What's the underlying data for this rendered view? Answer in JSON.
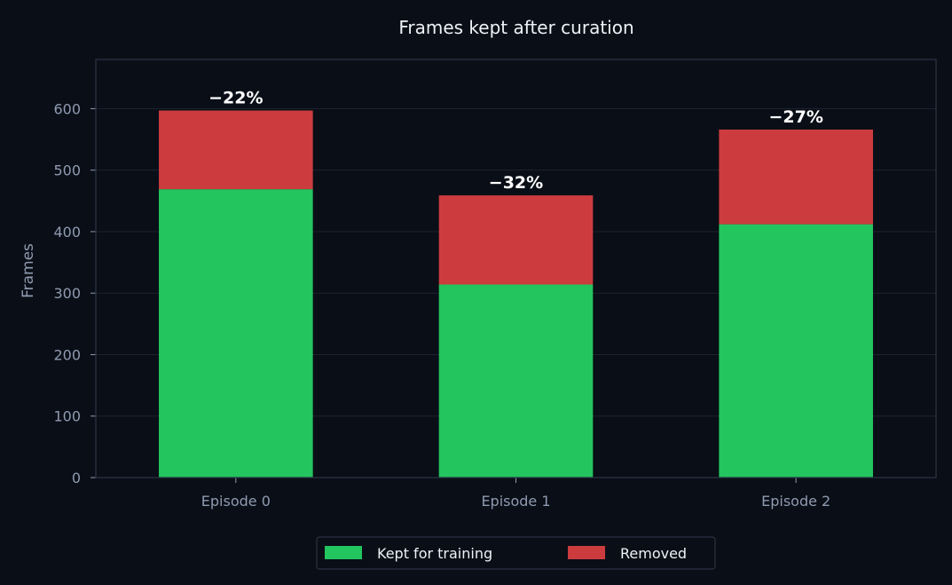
{
  "colors": {
    "background": "#0a0e17",
    "plot_border": "#2a3342",
    "grid": "#1c2331",
    "tick_text": "#8f9bb0",
    "title_text": "#eef1f6",
    "kept": "#22c55e",
    "removed": "#cc3c3f",
    "annotation": "#ffffff",
    "legend_border": "#2a3342",
    "legend_text": "#eef1f6"
  },
  "chart_data": {
    "type": "bar",
    "stacked": true,
    "title": "Frames kept after curation",
    "xlabel": "",
    "ylabel": "Frames",
    "ylim": [
      0,
      680
    ],
    "yticks": [
      0,
      100,
      200,
      300,
      400,
      500,
      600
    ],
    "grid": true,
    "legend_position": "bottom-center",
    "categories": [
      "Episode 0",
      "Episode 1",
      "Episode 2"
    ],
    "series": [
      {
        "name": "Kept for training",
        "values": [
          469,
          314,
          412
        ],
        "color": "#22c55e"
      },
      {
        "name": "Removed",
        "values": [
          128,
          145,
          154
        ],
        "color": "#cc3c3f"
      }
    ],
    "annotations": [
      "−22%",
      "−32%",
      "−27%"
    ]
  }
}
